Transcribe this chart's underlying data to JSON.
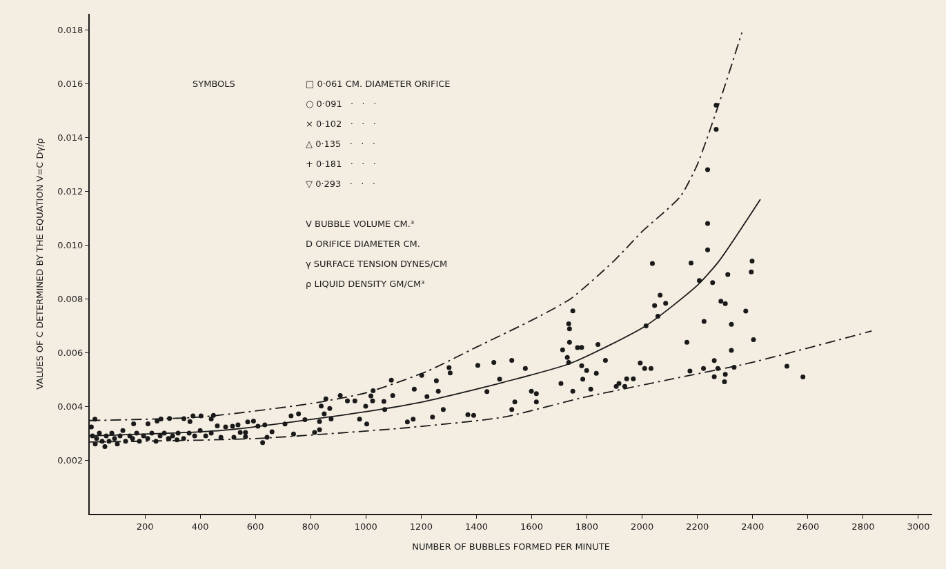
{
  "chart_data": {
    "type": "scatter",
    "xlabel": "NUMBER OF BUBBLES FORMED PER MINUTE",
    "ylabel": "VALUES OF C DETERMINED BY THE EQUATION V=C Dγ/ρ",
    "annotations": [
      "SYMBOLS",
      "□ 0·061 CM. DIAMETER ORIFICE",
      "○ 0·091   ·   ·   ·",
      "× 0·102   ·   ·   ·",
      "△ 0·135   ·   ·   ·",
      "+ 0·181   ·   ·   ·",
      "▽ 0·293   ·   ·   ·",
      "V BUBBLE VOLUME CM.³",
      "D ORIFICE DIAMETER CM.",
      "γ SURFACE TENSION DYNES/CM",
      "ρ LIQUID DENSITY GM/CM³"
    ],
    "xlim": [
      0,
      3050
    ],
    "xticks": [
      200,
      400,
      600,
      800,
      1000,
      1200,
      1400,
      1600,
      1800,
      2000,
      2200,
      2400,
      2600,
      2800,
      3000
    ],
    "ylim": [
      0,
      0.0186
    ],
    "yticks": [
      0.002,
      0.004,
      0.006,
      0.008,
      {
        "value": 0.01,
        "label": "0.010"
      },
      {
        "value": 0.012,
        "label": "0.012"
      },
      {
        "value": 0.014,
        "label": "0.014"
      },
      {
        "value": 0.016,
        "label": "0.016"
      },
      {
        "value": 0.018,
        "label": "0.018"
      }
    ],
    "grid": false,
    "series": [
      {
        "color": "#1a1a1a",
        "marker": "circle",
        "x": [
          6,
          10,
          19,
          20,
          25,
          35,
          45,
          55,
          60,
          70,
          80,
          90,
          100,
          110,
          120,
          130,
          145,
          155,
          159,
          170,
          180,
          195,
          210,
          211,
          225,
          240,
          244,
          255,
          258,
          270,
          285,
          287,
          289,
          300,
          316,
          320,
          340,
          341,
          360,
          363,
          374,
          380,
          400,
          403,
          420,
          440,
          440,
          448,
          462,
          475,
          492,
          517,
          522,
          537,
          545,
          564,
          564,
          572,
          593,
          609,
          626,
          634,
          642,
          660,
          707,
          729,
          738,
          756,
          779,
          814,
          832,
          832,
          838,
          849,
          855,
          869,
          874,
          907,
          933,
          960,
          977,
          999,
          1003,
          1018,
          1024,
          1026,
          1065,
          1068,
          1092,
          1097,
          1150,
          1171,
          1175,
          1202,
          1221,
          1241,
          1255,
          1262,
          1280,
          1301,
          1305,
          1369,
          1390,
          1405,
          1438,
          1463,
          1484,
          1528,
          1528,
          1539,
          1577,
          1599,
          1617,
          1617,
          1706,
          1712,
          1729,
          1734,
          1734,
          1737,
          1737,
          1749,
          1749,
          1766,
          1781,
          1781,
          1785,
          1799,
          1814,
          1834,
          1840,
          1867,
          1906,
          1916,
          1937,
          1944,
          1968,
          1993,
          2009,
          2014,
          2032,
          2037,
          2045,
          2057,
          2065,
          2085,
          2162,
          2173,
          2177,
          2207,
          2222,
          2224,
          2237,
          2237,
          2237,
          2255,
          2261,
          2261,
          2268,
          2268,
          2274,
          2285,
          2298,
          2301,
          2301,
          2310,
          2323,
          2323,
          2333,
          2375,
          2395,
          2398,
          2403,
          2524,
          2582
        ],
        "values": [
          0.00323,
          0.0029,
          0.00352,
          0.0026,
          0.0028,
          0.003,
          0.0027,
          0.0025,
          0.0029,
          0.0027,
          0.003,
          0.0028,
          0.0026,
          0.0029,
          0.0031,
          0.0027,
          0.0029,
          0.0028,
          0.00335,
          0.003,
          0.0027,
          0.0029,
          0.0028,
          0.00335,
          0.003,
          0.0027,
          0.00345,
          0.0029,
          0.00353,
          0.003,
          0.0028,
          0.00279,
          0.00355,
          0.0029,
          0.00275,
          0.003,
          0.0028,
          0.00354,
          0.003,
          0.00343,
          0.00364,
          0.0029,
          0.0031,
          0.00364,
          0.0029,
          0.003,
          0.00353,
          0.00366,
          0.00327,
          0.00285,
          0.00323,
          0.00326,
          0.00285,
          0.00331,
          0.00303,
          0.00287,
          0.00303,
          0.00342,
          0.00345,
          0.00326,
          0.00265,
          0.00331,
          0.00285,
          0.00305,
          0.00334,
          0.00364,
          0.00297,
          0.00372,
          0.0035,
          0.00303,
          0.00313,
          0.00343,
          0.00401,
          0.00372,
          0.00428,
          0.00392,
          0.00353,
          0.0044,
          0.0042,
          0.0042,
          0.00352,
          0.004,
          0.00334,
          0.00439,
          0.0042,
          0.00458,
          0.00418,
          0.00388,
          0.00497,
          0.0044,
          0.00342,
          0.00352,
          0.00464,
          0.00515,
          0.00436,
          0.0036,
          0.00495,
          0.00456,
          0.00388,
          0.00544,
          0.00524,
          0.00369,
          0.00366,
          0.00552,
          0.00455,
          0.00563,
          0.00501,
          0.00388,
          0.00571,
          0.00416,
          0.00541,
          0.00456,
          0.00447,
          0.00416,
          0.00485,
          0.0061,
          0.00582,
          0.00707,
          0.00563,
          0.00688,
          0.00638,
          0.00755,
          0.00456,
          0.00618,
          0.00619,
          0.00551,
          0.00501,
          0.00533,
          0.00464,
          0.00523,
          0.0063,
          0.00571,
          0.00474,
          0.00485,
          0.00474,
          0.00502,
          0.00502,
          0.00561,
          0.00541,
          0.00699,
          0.00541,
          0.00931,
          0.00775,
          0.00735,
          0.00813,
          0.00783,
          0.00638,
          0.00531,
          0.00933,
          0.00868,
          0.00541,
          0.00716,
          0.0128,
          0.0108,
          0.00982,
          0.0086,
          0.0057,
          0.0051,
          0.0152,
          0.0143,
          0.00541,
          0.00791,
          0.00491,
          0.00782,
          0.00519,
          0.0089,
          0.00705,
          0.00608,
          0.00545,
          0.00754,
          0.009,
          0.0094,
          0.00648,
          0.00549,
          0.00509
        ]
      },
      {
        "type": "line",
        "color": "#1a1a1a",
        "line_style": "dashed",
        "x": [
          0,
          400,
          800,
          1000,
          1221,
          1400,
          1600,
          1741,
          1897,
          2000,
          2138,
          2200,
          2286,
          2361
        ],
        "values": [
          0.00347,
          0.0036,
          0.0041,
          0.0045,
          0.0053,
          0.0062,
          0.0072,
          0.008,
          0.0094,
          0.0105,
          0.0118,
          0.013,
          0.0155,
          0.0179
        ]
      },
      {
        "type": "line",
        "color": "#1a1a1a",
        "line_style": "solid",
        "x": [
          0,
          477,
          1000,
          1221,
          1500,
          1741,
          2014,
          2200,
          2278,
          2428
        ],
        "values": [
          0.0029,
          0.0031,
          0.0038,
          0.0042,
          0.0049,
          0.0056,
          0.007,
          0.0085,
          0.0094,
          0.0117
        ]
      },
      {
        "type": "line",
        "color": "#1a1a1a",
        "line_style": "dashed",
        "x": [
          0,
          600,
          1146,
          1500,
          1775,
          2100,
          2385,
          2831
        ],
        "values": [
          0.00267,
          0.0028,
          0.0032,
          0.0036,
          0.0043,
          0.005,
          0.0056,
          0.0068
        ]
      }
    ]
  }
}
